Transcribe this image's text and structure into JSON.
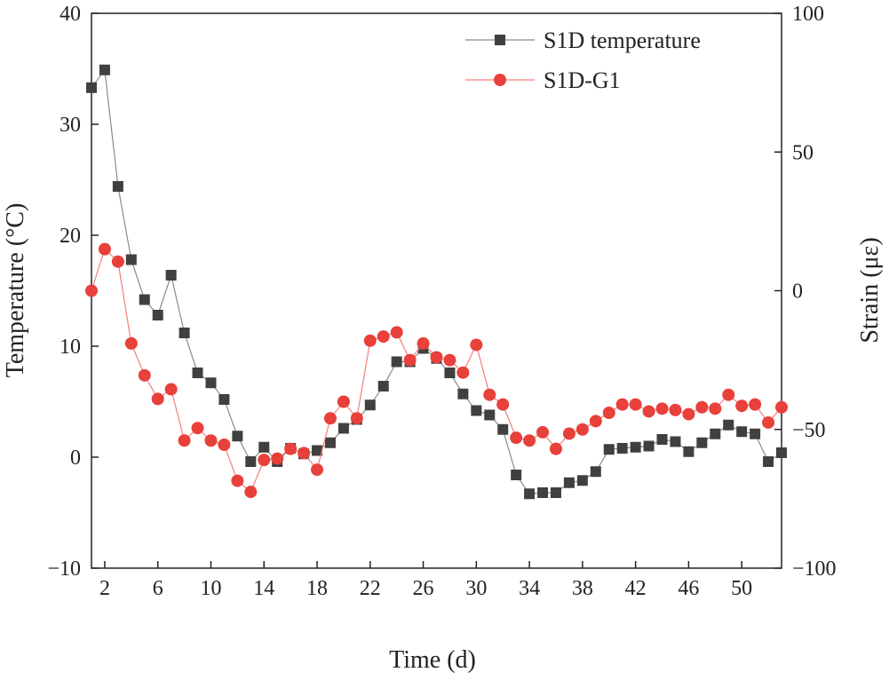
{
  "chart_data": {
    "type": "line",
    "title": "",
    "xlabel": "Time (d)",
    "ylabel": "Temperature (°C)",
    "y2label": "Strain (με)",
    "xlim": [
      1,
      53
    ],
    "ylim": [
      -10,
      40
    ],
    "y2lim": [
      -100,
      100
    ],
    "xticks": [
      2,
      6,
      10,
      14,
      18,
      22,
      26,
      30,
      34,
      38,
      42,
      46,
      50
    ],
    "yticks": [
      -10,
      0,
      10,
      20,
      30,
      40
    ],
    "y2ticks": [
      -100,
      -50,
      0,
      50,
      100
    ],
    "ytick_labels": [
      "−10",
      "0",
      "10",
      "20",
      "30",
      "40"
    ],
    "y2tick_labels": [
      "−100",
      "−50",
      "0",
      "50",
      "100"
    ],
    "grid": false,
    "legend_position": "top-right",
    "series": [
      {
        "name": "S1D temperature",
        "axis": "left",
        "marker": "square",
        "color": "#404040",
        "line_color": "#8a8a8a",
        "x": [
          1,
          2,
          3,
          4,
          5,
          6,
          7,
          8,
          9,
          10,
          11,
          12,
          13,
          14,
          15,
          16,
          17,
          18,
          19,
          20,
          21,
          22,
          23,
          24,
          25,
          26,
          27,
          28,
          29,
          30,
          31,
          32,
          33,
          34,
          35,
          36,
          37,
          38,
          39,
          40,
          41,
          42,
          43,
          44,
          45,
          46,
          47,
          48,
          49,
          50,
          51,
          52,
          53
        ],
        "values": [
          33.3,
          34.9,
          24.4,
          17.8,
          14.2,
          12.8,
          16.4,
          11.2,
          7.6,
          6.7,
          5.2,
          1.9,
          -0.4,
          0.9,
          -0.4,
          0.8,
          0.3,
          0.6,
          1.3,
          2.6,
          3.4,
          4.7,
          6.4,
          8.6,
          8.6,
          9.8,
          8.9,
          7.6,
          5.7,
          4.2,
          3.8,
          2.5,
          -1.6,
          -3.3,
          -3.2,
          -3.2,
          -2.3,
          -2.1,
          -1.3,
          0.7,
          0.8,
          0.9,
          1.0,
          1.6,
          1.4,
          0.5,
          1.3,
          2.1,
          2.9,
          2.3,
          2.1,
          -0.4,
          0.4
        ]
      },
      {
        "name": "S1D-G1",
        "axis": "right",
        "marker": "circle",
        "color": "#e8403a",
        "line_color": "#f08080",
        "x": [
          1,
          2,
          3,
          4,
          5,
          6,
          7,
          8,
          9,
          10,
          11,
          12,
          13,
          14,
          15,
          16,
          17,
          18,
          19,
          20,
          21,
          22,
          23,
          24,
          25,
          26,
          27,
          28,
          29,
          30,
          31,
          32,
          33,
          34,
          35,
          36,
          37,
          38,
          39,
          40,
          41,
          42,
          43,
          44,
          45,
          46,
          47,
          48,
          49,
          50,
          51,
          52,
          53
        ],
        "values": [
          0,
          15,
          10.5,
          -19,
          -30.5,
          -39,
          -35.5,
          -54,
          -49.5,
          -54,
          -55.5,
          -68.5,
          -72.5,
          -61,
          -60.5,
          -57,
          -58.5,
          -64.5,
          -46,
          -40,
          -46,
          -18,
          -16.5,
          -15,
          -25,
          -19,
          -24,
          -25,
          -29.5,
          -19.5,
          -37.5,
          -41,
          -53,
          -54,
          -51,
          -57,
          -51.5,
          -50,
          -47,
          -44,
          -41,
          -41,
          -43.5,
          -42.5,
          -43,
          -44.5,
          -42,
          -42.5,
          -37.5,
          -41.5,
          -41,
          -47.5,
          -42
        ]
      }
    ]
  }
}
